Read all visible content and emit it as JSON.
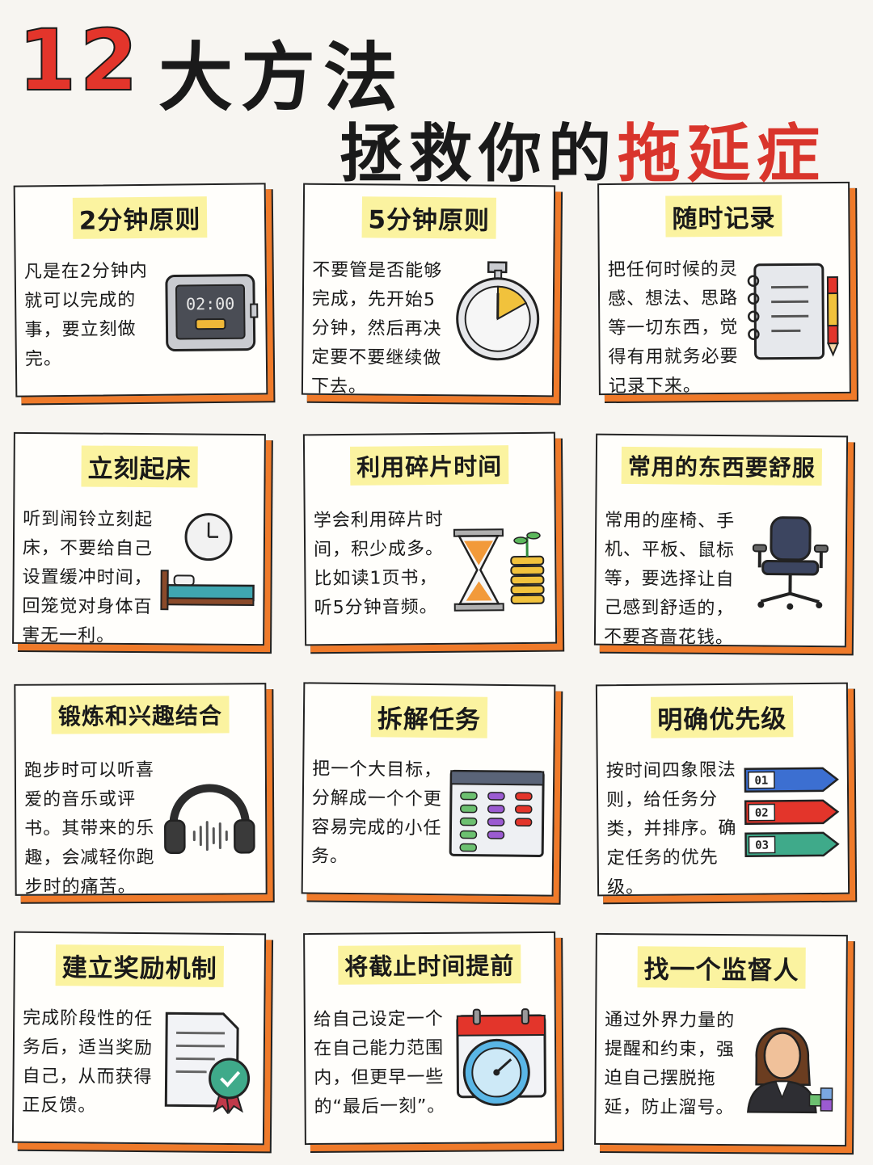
{
  "title": {
    "number": "12",
    "line1": "大方法",
    "line2_prefix": "拯救你的",
    "line2_highlight": "拖延症"
  },
  "cards": [
    {
      "title": "2分钟原则",
      "body": "凡是在2分钟内就可以完成的事，要立刻做完。",
      "icon": "timer-icon",
      "timer_text": "02:00"
    },
    {
      "title": "5分钟原则",
      "body": "不要管是否能够完成，先开始5分钟，然后再决定要不要继续做下去。",
      "icon": "stopwatch-icon"
    },
    {
      "title": "随时记录",
      "body": "把任何时候的灵感、想法、思路等一切东西，觉得有用就务必要记录下来。",
      "icon": "notebook-icon"
    },
    {
      "title": "立刻起床",
      "body": "听到闹铃立刻起床，不要给自己设置缓冲时间，回笼觉对身体百害无一利。",
      "icon": "bed-clock-icon"
    },
    {
      "title": "利用碎片时间",
      "body": "学会利用碎片时间，积少成多。比如读1页书，听5分钟音频。",
      "icon": "hourglass-coins-icon"
    },
    {
      "title": "常用的东西要舒服",
      "body": "常用的座椅、手机、平板、鼠标等，要选择让自己感到舒适的，不要吝啬花钱。",
      "icon": "office-chair-icon"
    },
    {
      "title": "锻炼和兴趣结合",
      "body": "跑步时可以听喜爱的音乐或评书。其带来的乐趣，会减轻你跑步时的痛苦。",
      "icon": "headphones-icon"
    },
    {
      "title": "拆解任务",
      "body": "把一个大目标，分解成一个个更容易完成的小任务。",
      "icon": "task-board-icon"
    },
    {
      "title": "明确优先级",
      "body": "按时间四象限法则，给任务分类，并排序。确定任务的优先级。",
      "icon": "priority-tags-icon",
      "tags": [
        "01",
        "02",
        "03"
      ]
    },
    {
      "title": "建立奖励机制",
      "body": "完成阶段性的任务后，适当奖励自己，从而获得正反馈。",
      "icon": "certificate-icon"
    },
    {
      "title": "将截止时间提前",
      "body": "给自己设定一个在自己能力范围内，但更早一些的“最后一刻”。",
      "icon": "calendar-clock-icon"
    },
    {
      "title": "找一个监督人",
      "body": "通过外界力量的提醒和约束，强迫自己摆脱拖延，防止溜号。",
      "icon": "supervisor-icon"
    }
  ],
  "colors": {
    "accent": "#ef7a2a",
    "title_red": "#e3352b",
    "highlight": "#fbf3a0"
  }
}
